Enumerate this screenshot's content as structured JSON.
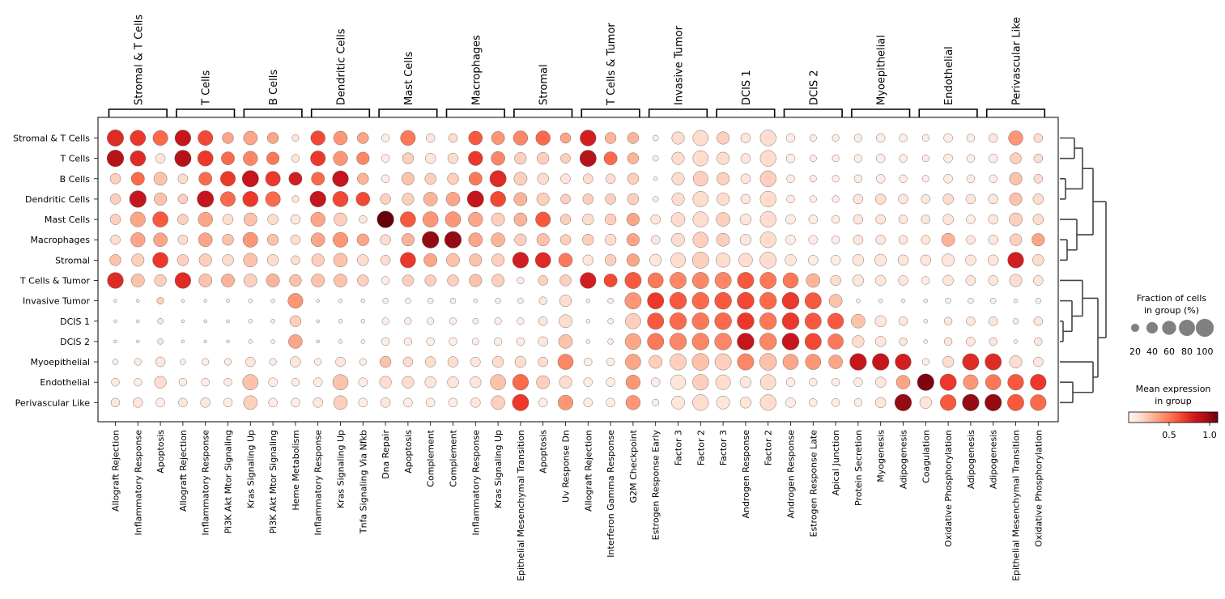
{
  "chart_data": {
    "type": "dotplot",
    "group_labels": [
      "Stromal & T Cells",
      "T Cells",
      "B Cells",
      "Dendritic Cells",
      "Mast Cells",
      "Macrophages",
      "Stromal",
      "T Cells & Tumor",
      "Invasive Tumor",
      "DCIS 1",
      "DCIS 2",
      "Myoepithelial",
      "Endothelial",
      "Perivascular Like"
    ],
    "column_groups": [
      {
        "label": "Stromal & T Cells",
        "start": 0,
        "end": 2
      },
      {
        "label": "T Cells",
        "start": 3,
        "end": 5
      },
      {
        "label": "B Cells",
        "start": 6,
        "end": 8
      },
      {
        "label": "Dendritic Cells",
        "start": 9,
        "end": 11
      },
      {
        "label": "Mast Cells",
        "start": 12,
        "end": 14
      },
      {
        "label": "Macrophages",
        "start": 15,
        "end": 17
      },
      {
        "label": "Stromal",
        "start": 18,
        "end": 20
      },
      {
        "label": "T Cells & Tumor",
        "start": 21,
        "end": 23
      },
      {
        "label": "Invasive Tumor",
        "start": 24,
        "end": 26
      },
      {
        "label": "DCIS 1",
        "start": 27,
        "end": 29
      },
      {
        "label": "DCIS 2",
        "start": 30,
        "end": 32
      },
      {
        "label": "Myoepithelial",
        "start": 33,
        "end": 35
      },
      {
        "label": "Endothelial",
        "start": 36,
        "end": 38
      },
      {
        "label": "Perivascular Like",
        "start": 39,
        "end": 41
      }
    ],
    "columns": [
      "Allograft Rejection",
      "Inflammatory Response",
      "Apoptosis",
      "Allograft Rejection",
      "Inflammatory Response",
      "Pi3K Akt Mtor Signaling",
      "Kras Signaling Up",
      "Pi3K Akt Mtor Signaling",
      "Heme Metabolism",
      "Inflammatory Response",
      "Kras Signaling Up",
      "Tnfa Signaling Via Nfkb",
      "Dna Repair",
      "Apoptosis",
      "Complement",
      "Complement",
      "Inflammatory Response",
      "Kras Signaling Up",
      "Epithelial Mesenchymal Transition",
      "Apoptosis",
      "Uv Response Dn",
      "Allograft Rejection",
      "Interferon Gamma Response",
      "G2M Checkpoint",
      "Estrogen Response Early",
      "Factor 3",
      "Factor 2",
      "Factor 3",
      "Androgen Response",
      "Factor 2",
      "Androgen Response",
      "Estrogen Response Late",
      "Apical Junction",
      "Protein Secretion",
      "Myogenesis",
      "Adipogenesis",
      "Coagulation",
      "Oxidative Phosphorylation",
      "Adipogenesis",
      "Adipogenesis",
      "Epithelial Mesenchymal Transition",
      "Oxidative Phosphorylation"
    ],
    "fraction": [
      [
        85,
        75,
        70,
        80,
        70,
        40,
        60,
        40,
        15,
        65,
        60,
        40,
        20,
        70,
        25,
        25,
        60,
        55,
        65,
        65,
        35,
        80,
        40,
        40,
        10,
        50,
        75,
        50,
        30,
        80,
        25,
        15,
        15,
        20,
        25,
        20,
        15,
        25,
        20,
        25,
        65,
        25
      ],
      [
        88,
        75,
        30,
        85,
        75,
        55,
        65,
        50,
        20,
        70,
        65,
        50,
        20,
        40,
        35,
        35,
        65,
        60,
        45,
        45,
        30,
        85,
        55,
        40,
        10,
        50,
        75,
        50,
        30,
        80,
        25,
        15,
        15,
        20,
        25,
        20,
        15,
        25,
        20,
        25,
        40,
        25
      ],
      [
        35,
        55,
        55,
        30,
        55,
        70,
        85,
        70,
        55,
        55,
        80,
        40,
        20,
        50,
        40,
        40,
        55,
        85,
        55,
        40,
        30,
        30,
        30,
        40,
        5,
        50,
        70,
        50,
        30,
        80,
        20,
        15,
        15,
        20,
        25,
        20,
        15,
        25,
        20,
        20,
        50,
        25
      ],
      [
        35,
        88,
        50,
        30,
        85,
        70,
        75,
        70,
        15,
        80,
        75,
        60,
        35,
        45,
        60,
        60,
        85,
        75,
        55,
        50,
        30,
        35,
        35,
        40,
        10,
        50,
        75,
        50,
        30,
        80,
        20,
        15,
        15,
        30,
        35,
        30,
        25,
        35,
        30,
        30,
        50,
        35
      ],
      [
        35,
        70,
        75,
        35,
        65,
        35,
        55,
        35,
        30,
        65,
        55,
        20,
        88,
        75,
        75,
        75,
        65,
        55,
        55,
        70,
        35,
        40,
        40,
        50,
        30,
        60,
        75,
        60,
        40,
        80,
        30,
        25,
        20,
        30,
        30,
        25,
        25,
        35,
        25,
        30,
        55,
        35
      ],
      [
        30,
        65,
        60,
        30,
        60,
        40,
        70,
        40,
        30,
        60,
        70,
        45,
        35,
        50,
        88,
        88,
        60,
        60,
        45,
        50,
        35,
        40,
        40,
        50,
        25,
        55,
        75,
        55,
        40,
        80,
        30,
        25,
        20,
        30,
        30,
        25,
        25,
        55,
        25,
        30,
        45,
        50
      ],
      [
        40,
        50,
        75,
        40,
        50,
        40,
        60,
        40,
        25,
        50,
        60,
        40,
        30,
        75,
        55,
        55,
        50,
        50,
        80,
        75,
        60,
        35,
        40,
        50,
        45,
        70,
        85,
        65,
        60,
        85,
        40,
        30,
        30,
        40,
        45,
        35,
        35,
        50,
        35,
        35,
        80,
        40
      ],
      [
        80,
        55,
        45,
        80,
        55,
        55,
        55,
        55,
        45,
        55,
        55,
        40,
        20,
        40,
        40,
        40,
        50,
        50,
        15,
        30,
        40,
        80,
        55,
        85,
        75,
        85,
        85,
        85,
        85,
        85,
        75,
        60,
        35,
        40,
        35,
        30,
        20,
        35,
        30,
        30,
        50,
        30
      ],
      [
        3,
        3,
        15,
        3,
        3,
        3,
        5,
        5,
        70,
        3,
        5,
        5,
        10,
        10,
        10,
        10,
        5,
        10,
        10,
        20,
        45,
        5,
        10,
        85,
        85,
        90,
        90,
        90,
        90,
        90,
        90,
        85,
        55,
        5,
        5,
        5,
        5,
        10,
        10,
        10,
        5,
        10
      ],
      [
        3,
        3,
        10,
        3,
        3,
        3,
        5,
        5,
        40,
        3,
        5,
        5,
        15,
        15,
        15,
        15,
        10,
        15,
        15,
        25,
        55,
        5,
        10,
        75,
        85,
        90,
        90,
        90,
        90,
        90,
        90,
        85,
        80,
        60,
        40,
        25,
        5,
        20,
        25,
        25,
        10,
        25
      ],
      [
        3,
        3,
        10,
        3,
        3,
        3,
        5,
        5,
        60,
        3,
        5,
        5,
        20,
        20,
        20,
        20,
        15,
        20,
        20,
        30,
        60,
        5,
        10,
        80,
        85,
        90,
        90,
        90,
        90,
        90,
        90,
        85,
        75,
        45,
        35,
        20,
        5,
        20,
        25,
        20,
        5,
        20
      ],
      [
        10,
        15,
        30,
        10,
        15,
        15,
        30,
        15,
        35,
        15,
        30,
        15,
        40,
        30,
        35,
        35,
        30,
        40,
        40,
        30,
        75,
        20,
        20,
        75,
        55,
        85,
        90,
        85,
        85,
        90,
        75,
        75,
        60,
        88,
        88,
        80,
        15,
        40,
        85,
        85,
        50,
        30
      ],
      [
        20,
        20,
        45,
        20,
        20,
        20,
        75,
        25,
        20,
        25,
        75,
        25,
        45,
        45,
        40,
        40,
        40,
        75,
        80,
        55,
        50,
        25,
        25,
        65,
        25,
        70,
        80,
        70,
        40,
        75,
        25,
        20,
        20,
        25,
        35,
        60,
        88,
        85,
        70,
        75,
        80,
        80
      ],
      [
        25,
        30,
        25,
        25,
        30,
        25,
        60,
        25,
        25,
        30,
        60,
        25,
        30,
        25,
        25,
        25,
        30,
        60,
        85,
        25,
        70,
        25,
        25,
        65,
        15,
        55,
        80,
        55,
        40,
        80,
        30,
        20,
        20,
        20,
        35,
        88,
        45,
        80,
        88,
        88,
        85,
        80
      ]
    ],
    "mean_expression": [
      [
        0.75,
        0.7,
        0.55,
        0.85,
        0.65,
        0.35,
        0.35,
        0.35,
        0.1,
        0.65,
        0.4,
        0.35,
        0.05,
        0.5,
        0.1,
        0.15,
        0.6,
        0.4,
        0.45,
        0.55,
        0.35,
        0.8,
        0.3,
        0.3,
        0.05,
        0.15,
        0.15,
        0.2,
        0.1,
        0.15,
        0.05,
        0.05,
        0.05,
        0.05,
        0.05,
        0.05,
        0.05,
        0.05,
        0.05,
        0.1,
        0.4,
        0.15
      ],
      [
        0.9,
        0.75,
        0.1,
        0.9,
        0.7,
        0.55,
        0.45,
        0.5,
        0.1,
        0.7,
        0.4,
        0.45,
        0.05,
        0.2,
        0.1,
        0.15,
        0.7,
        0.45,
        0.2,
        0.2,
        0.2,
        0.9,
        0.55,
        0.3,
        0.05,
        0.15,
        0.15,
        0.15,
        0.1,
        0.15,
        0.05,
        0.05,
        0.05,
        0.05,
        0.05,
        0.05,
        0.05,
        0.05,
        0.05,
        0.05,
        0.2,
        0.15
      ],
      [
        0.2,
        0.55,
        0.25,
        0.15,
        0.55,
        0.7,
        0.85,
        0.7,
        0.8,
        0.55,
        0.85,
        0.3,
        0.05,
        0.25,
        0.2,
        0.2,
        0.5,
        0.75,
        0.2,
        0.15,
        0.1,
        0.15,
        0.15,
        0.2,
        0.05,
        0.15,
        0.2,
        0.2,
        0.1,
        0.2,
        0.05,
        0.05,
        0.05,
        0.05,
        0.05,
        0.05,
        0.05,
        0.05,
        0.05,
        0.05,
        0.25,
        0.15
      ],
      [
        0.2,
        0.85,
        0.25,
        0.2,
        0.85,
        0.55,
        0.7,
        0.55,
        0.1,
        0.85,
        0.65,
        0.65,
        0.2,
        0.2,
        0.3,
        0.35,
        0.85,
        0.65,
        0.3,
        0.2,
        0.2,
        0.2,
        0.2,
        0.2,
        0.05,
        0.15,
        0.15,
        0.15,
        0.1,
        0.15,
        0.05,
        0.05,
        0.05,
        0.1,
        0.15,
        0.1,
        0.1,
        0.15,
        0.1,
        0.1,
        0.25,
        0.15
      ],
      [
        0.2,
        0.35,
        0.6,
        0.2,
        0.35,
        0.15,
        0.25,
        0.15,
        0.1,
        0.35,
        0.2,
        0.1,
        1.2,
        0.6,
        0.4,
        0.4,
        0.35,
        0.2,
        0.3,
        0.6,
        0.2,
        0.15,
        0.2,
        0.35,
        0.1,
        0.15,
        0.15,
        0.2,
        0.1,
        0.15,
        0.05,
        0.05,
        0.05,
        0.1,
        0.1,
        0.1,
        0.1,
        0.1,
        0.05,
        0.1,
        0.2,
        0.15
      ],
      [
        0.15,
        0.35,
        0.35,
        0.15,
        0.35,
        0.25,
        0.4,
        0.25,
        0.15,
        0.35,
        0.4,
        0.35,
        0.15,
        0.3,
        1.0,
        1.0,
        0.35,
        0.3,
        0.2,
        0.25,
        0.2,
        0.2,
        0.15,
        0.35,
        0.1,
        0.15,
        0.2,
        0.2,
        0.1,
        0.15,
        0.05,
        0.05,
        0.05,
        0.1,
        0.1,
        0.1,
        0.1,
        0.3,
        0.1,
        0.1,
        0.2,
        0.35
      ],
      [
        0.25,
        0.2,
        0.7,
        0.2,
        0.2,
        0.15,
        0.25,
        0.15,
        0.15,
        0.2,
        0.25,
        0.15,
        0.15,
        0.7,
        0.35,
        0.25,
        0.25,
        0.2,
        0.8,
        0.75,
        0.5,
        0.1,
        0.2,
        0.35,
        0.1,
        0.15,
        0.2,
        0.15,
        0.15,
        0.15,
        0.1,
        0.05,
        0.05,
        0.1,
        0.1,
        0.1,
        0.1,
        0.1,
        0.1,
        0.1,
        0.8,
        0.15
      ],
      [
        0.75,
        0.25,
        0.2,
        0.75,
        0.25,
        0.3,
        0.2,
        0.3,
        0.25,
        0.25,
        0.25,
        0.2,
        0.05,
        0.2,
        0.2,
        0.2,
        0.25,
        0.2,
        0.05,
        0.2,
        0.2,
        0.8,
        0.65,
        0.6,
        0.5,
        0.45,
        0.45,
        0.45,
        0.6,
        0.5,
        0.5,
        0.3,
        0.15,
        0.1,
        0.1,
        0.1,
        0.05,
        0.1,
        0.1,
        0.1,
        0.15,
        0.1
      ],
      [
        0.05,
        0.05,
        0.2,
        0.05,
        0.05,
        0.05,
        0.05,
        0.05,
        0.4,
        0.05,
        0.05,
        0.05,
        0.05,
        0.05,
        0.05,
        0.05,
        0.05,
        0.05,
        0.05,
        0.1,
        0.15,
        0.05,
        0.05,
        0.4,
        0.7,
        0.6,
        0.55,
        0.6,
        0.65,
        0.55,
        0.7,
        0.6,
        0.25,
        0.05,
        0.05,
        0.05,
        0.05,
        0.05,
        0.05,
        0.05,
        0.05,
        0.05
      ],
      [
        0.05,
        0.05,
        0.1,
        0.05,
        0.05,
        0.05,
        0.05,
        0.05,
        0.2,
        0.05,
        0.05,
        0.05,
        0.05,
        0.05,
        0.05,
        0.05,
        0.05,
        0.05,
        0.05,
        0.1,
        0.15,
        0.05,
        0.05,
        0.2,
        0.6,
        0.55,
        0.5,
        0.55,
        0.7,
        0.5,
        0.7,
        0.6,
        0.6,
        0.25,
        0.1,
        0.1,
        0.05,
        0.1,
        0.1,
        0.1,
        0.05,
        0.1
      ],
      [
        0.05,
        0.05,
        0.1,
        0.05,
        0.05,
        0.05,
        0.05,
        0.05,
        0.35,
        0.05,
        0.05,
        0.05,
        0.05,
        0.05,
        0.05,
        0.05,
        0.05,
        0.05,
        0.05,
        0.1,
        0.25,
        0.05,
        0.05,
        0.35,
        0.5,
        0.45,
        0.45,
        0.45,
        0.85,
        0.45,
        0.85,
        0.65,
        0.5,
        0.15,
        0.1,
        0.1,
        0.05,
        0.1,
        0.1,
        0.1,
        0.05,
        0.1
      ],
      [
        0.05,
        0.05,
        0.1,
        0.05,
        0.05,
        0.05,
        0.1,
        0.05,
        0.1,
        0.05,
        0.1,
        0.05,
        0.25,
        0.15,
        0.15,
        0.15,
        0.1,
        0.15,
        0.15,
        0.15,
        0.45,
        0.05,
        0.05,
        0.35,
        0.2,
        0.2,
        0.25,
        0.2,
        0.45,
        0.25,
        0.35,
        0.4,
        0.35,
        0.85,
        0.85,
        0.8,
        0.05,
        0.15,
        0.75,
        0.75,
        0.15,
        0.1
      ],
      [
        0.05,
        0.05,
        0.15,
        0.05,
        0.05,
        0.05,
        0.25,
        0.05,
        0.05,
        0.05,
        0.25,
        0.05,
        0.15,
        0.15,
        0.1,
        0.1,
        0.1,
        0.25,
        0.55,
        0.2,
        0.15,
        0.05,
        0.05,
        0.4,
        0.05,
        0.1,
        0.2,
        0.15,
        0.1,
        0.15,
        0.05,
        0.05,
        0.05,
        0.05,
        0.1,
        0.35,
        1.05,
        0.7,
        0.4,
        0.5,
        0.6,
        0.7
      ],
      [
        0.1,
        0.1,
        0.05,
        0.1,
        0.1,
        0.05,
        0.2,
        0.05,
        0.05,
        0.1,
        0.2,
        0.05,
        0.1,
        0.05,
        0.05,
        0.05,
        0.1,
        0.2,
        0.7,
        0.05,
        0.4,
        0.05,
        0.05,
        0.4,
        0.05,
        0.1,
        0.15,
        0.1,
        0.1,
        0.15,
        0.05,
        0.05,
        0.05,
        0.05,
        0.1,
        1.0,
        0.1,
        0.6,
        1.0,
        1.0,
        0.6,
        0.55
      ]
    ],
    "size_legend": {
      "title": "Fraction of cells\nin group (%)",
      "title_line1": "Fraction of cells",
      "title_line2": "in group (%)",
      "values": [
        20,
        40,
        60,
        80,
        100
      ]
    },
    "color_legend": {
      "title_line1": "Mean expression",
      "title_line2": "in group",
      "ticks": [
        0.5,
        1.0
      ],
      "tick_labels": [
        "0.5",
        "1.0"
      ],
      "vmin": 0.0,
      "vmax": 1.1
    },
    "colormap": [
      "#fff5f0",
      "#fee0d2",
      "#fcbba1",
      "#fc9272",
      "#fb6a4a",
      "#ef3b2c",
      "#cb181d",
      "#a50f15",
      "#67000d"
    ],
    "dendrogram": "right"
  }
}
